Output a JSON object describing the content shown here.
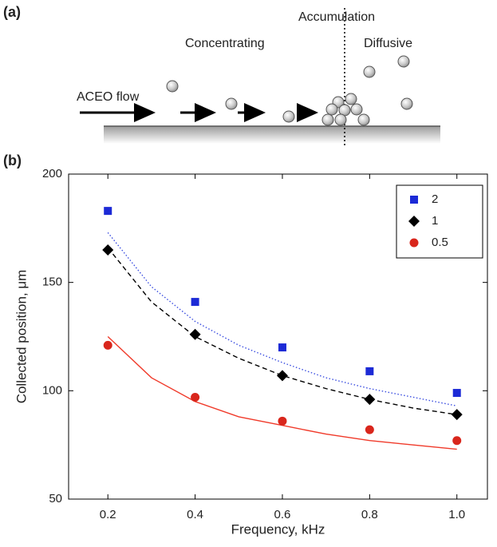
{
  "diagram": {
    "label": "(a)",
    "flow": "ACEO flow",
    "stage1": "Concentrating",
    "stage2": "Accumulation",
    "stage3": "Diffusive"
  },
  "chart_data": {
    "type": "scatter",
    "label": "(b)",
    "x_label": "Frequency, kHz",
    "y_label": "Collected position, μm",
    "x": [
      0.2,
      0.4,
      0.6,
      0.8,
      1.0
    ],
    "series": [
      {
        "name": "2",
        "color": "#1c2ad6",
        "marker": "square",
        "values": [
          183,
          141,
          120,
          109,
          99
        ]
      },
      {
        "name": "1",
        "color": "#000000",
        "marker": "diamond",
        "values": [
          165,
          126,
          107,
          96,
          89
        ]
      },
      {
        "name": "0.5",
        "color": "#d9261c",
        "marker": "circle",
        "values": [
          121,
          97,
          86,
          82,
          77
        ]
      }
    ],
    "fits": {
      "x": [
        0.2,
        0.3,
        0.4,
        0.5,
        0.6,
        0.7,
        0.8,
        0.9,
        1.0
      ],
      "lines": [
        {
          "color": "#3b4ee0",
          "dash": "dotted",
          "values": [
            173,
            148,
            132,
            121,
            113,
            106,
            101,
            97,
            93
          ]
        },
        {
          "color": "#000000",
          "dash": "dashed",
          "values": [
            166,
            141,
            125,
            115,
            107,
            101,
            96,
            92,
            89
          ]
        },
        {
          "color": "#f03a2a",
          "dash": "solid",
          "values": [
            125,
            106,
            95,
            88,
            84,
            80,
            77,
            75,
            73
          ]
        }
      ]
    },
    "xlim": [
      0.11,
      1.07
    ],
    "ylim": [
      50,
      200
    ],
    "xticks": [
      0.2,
      0.4,
      0.6,
      0.8,
      {
        "value": 1,
        "label": "1.0"
      }
    ],
    "yticks": [
      50,
      100,
      150,
      200
    ],
    "legend": "upper right"
  }
}
